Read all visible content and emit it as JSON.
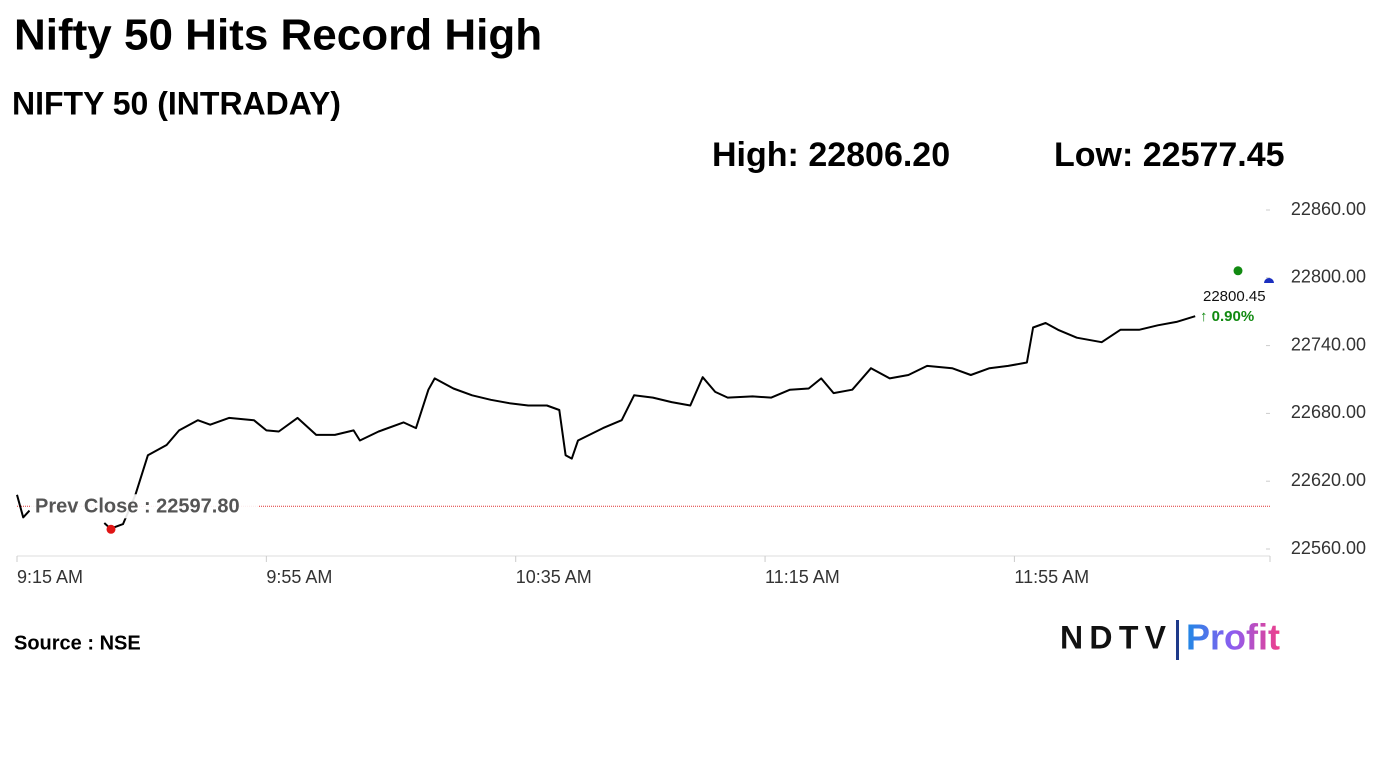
{
  "chart_data": {
    "type": "line",
    "title": "Nifty 50 Hits Record High",
    "subtitle": "NIFTY 50 (INTRADAY)",
    "high": {
      "label": "High:",
      "value": 22806.2,
      "value_label": "22806.20"
    },
    "low": {
      "label": "Low:",
      "value": 22577.45,
      "value_label": "22577.45"
    },
    "prev_close": {
      "label": "Prev Close :",
      "value": 22597.8,
      "value_label": "22597.80"
    },
    "last": {
      "value": 22800.45,
      "value_label": "22800.45",
      "change": 0.9,
      "change_label": "↑ 0.90%"
    },
    "source": "Source : NSE",
    "logo": {
      "left": "NDTV",
      "right": "Profit"
    },
    "color": "#000000",
    "x": [
      555,
      556,
      557,
      558,
      569,
      570,
      572,
      574,
      576,
      579,
      581,
      584,
      586,
      589,
      593,
      595,
      597,
      600,
      603,
      606,
      609,
      610,
      613,
      617,
      619,
      621,
      622,
      625,
      628,
      631,
      634,
      637,
      640,
      642,
      643,
      644,
      645,
      649,
      652,
      654,
      657,
      660,
      663,
      665,
      667,
      669,
      673,
      676,
      679,
      682,
      684,
      686,
      689,
      692,
      695,
      698,
      701,
      705,
      708,
      711,
      714,
      717,
      718,
      720,
      722,
      725,
      729,
      732,
      735,
      738,
      741,
      744
    ],
    "values": [
      22608,
      22588,
      22594,
      null,
      22583,
      22578,
      22582,
      22608,
      22643,
      22652,
      22665,
      22674,
      22670,
      22676,
      22674,
      22665,
      22664,
      22676,
      22661,
      22661,
      22665,
      22656,
      22664,
      22672,
      22667,
      22701,
      22711,
      22702,
      22696,
      22692,
      22689,
      22687,
      22687,
      22683,
      22643,
      22640,
      22656,
      22667,
      22674,
      22696,
      22694,
      22690,
      22687,
      22712,
      22699,
      22694,
      22695,
      22694,
      22701,
      22702,
      22711,
      22698,
      22701,
      22720,
      22711,
      22714,
      22722,
      22720,
      22714,
      22720,
      22722,
      22725,
      22756,
      22760,
      22754,
      22747,
      22743,
      22754,
      22754,
      22758,
      22761,
      22766
    ],
    "xlim": [
      555,
      756
    ],
    "xticks": [
      {
        "value": 555,
        "label": "9:15 AM"
      },
      {
        "value": 595,
        "label": "9:55 AM"
      },
      {
        "value": 635,
        "label": "10:35 AM"
      },
      {
        "value": 675,
        "label": "11:15 AM"
      },
      {
        "value": 715,
        "label": "11:55 AM"
      }
    ],
    "ylim": [
      22560,
      22860
    ],
    "yticks": [
      {
        "value": 22560,
        "label": "22560.00"
      },
      {
        "value": 22620,
        "label": "22620.00"
      },
      {
        "value": 22680,
        "label": "22680.00"
      },
      {
        "value": 22740,
        "label": "22740.00"
      },
      {
        "value": 22800,
        "label": "22800.00"
      },
      {
        "value": 22860,
        "label": "22860.00"
      }
    ]
  }
}
